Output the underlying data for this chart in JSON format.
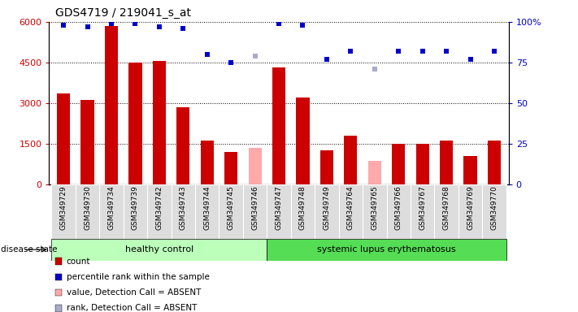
{
  "title": "GDS4719 / 219041_s_at",
  "samples": [
    "GSM349729",
    "GSM349730",
    "GSM349734",
    "GSM349739",
    "GSM349742",
    "GSM349743",
    "GSM349744",
    "GSM349745",
    "GSM349746",
    "GSM349747",
    "GSM349748",
    "GSM349749",
    "GSM349764",
    "GSM349765",
    "GSM349766",
    "GSM349767",
    "GSM349768",
    "GSM349769",
    "GSM349770"
  ],
  "counts": [
    3350,
    3100,
    5850,
    4500,
    4550,
    2850,
    1600,
    1200,
    null,
    4300,
    3200,
    1250,
    1800,
    null,
    1500,
    1500,
    1600,
    1050,
    1600
  ],
  "counts_absent": [
    null,
    null,
    null,
    null,
    null,
    null,
    null,
    null,
    1350,
    null,
    null,
    null,
    null,
    850,
    null,
    null,
    null,
    null,
    null
  ],
  "percentile_ranks": [
    98,
    97,
    99,
    99,
    97,
    96,
    80,
    75,
    null,
    99,
    98,
    77,
    82,
    null,
    82,
    82,
    82,
    77,
    82
  ],
  "percentile_ranks_absent": [
    null,
    null,
    null,
    null,
    null,
    null,
    null,
    null,
    79,
    null,
    null,
    null,
    null,
    71,
    null,
    null,
    null,
    null,
    null
  ],
  "healthy_count": 9,
  "disease_count": 10,
  "ylim_left": [
    0,
    6000
  ],
  "ylim_right": [
    0,
    100
  ],
  "yticks_left": [
    0,
    1500,
    3000,
    4500,
    6000
  ],
  "ytick_labels_left": [
    "0",
    "1500",
    "3000",
    "4500",
    "6000"
  ],
  "yticks_right": [
    0,
    25,
    50,
    75,
    100
  ],
  "ytick_labels_right": [
    "0",
    "25",
    "50",
    "75",
    "100%"
  ],
  "bar_color_red": "#cc0000",
  "bar_color_pink": "#ffaaaa",
  "dot_color_blue": "#0000cc",
  "dot_color_lightblue": "#aaaacc",
  "healthy_bg": "#bbffbb",
  "disease_bg": "#55dd55",
  "xticklabel_bg": "#dddddd",
  "legend_items": [
    {
      "color": "#cc0000",
      "label": "count"
    },
    {
      "color": "#0000cc",
      "label": "percentile rank within the sample"
    },
    {
      "color": "#ffaaaa",
      "label": "value, Detection Call = ABSENT"
    },
    {
      "color": "#aaaacc",
      "label": "rank, Detection Call = ABSENT"
    }
  ]
}
